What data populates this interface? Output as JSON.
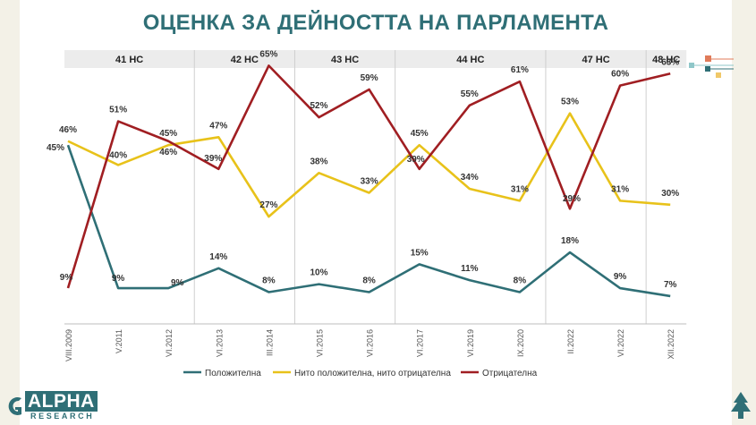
{
  "title": "ОЦЕНКА ЗА ДЕЙНОСТТА НА ПАРЛАМЕНТА",
  "logo": {
    "main": "ALPHA",
    "sub": "RESEARCH"
  },
  "colors": {
    "positive": "#2f6f76",
    "neutral": "#e8c21a",
    "negative": "#a01e22",
    "title": "#2f6f76"
  },
  "chart_data": {
    "type": "line",
    "title": "ОЦЕНКА ЗА ДЕЙНОСТТА НА ПАРЛАМЕНТА",
    "ylim": [
      0,
      70
    ],
    "grid": false,
    "legend": "bottom",
    "categories": [
      "VIII.2009",
      "V.2011",
      "VI.2012",
      "VI.2013",
      "III.2014",
      "VI.2015",
      "VI.2016",
      "VI.2017",
      "VI.2019",
      "IX.2020",
      "II.2022",
      "VI.2022",
      "XII.2022"
    ],
    "parliaments": [
      {
        "label": "41 НС",
        "start": 0,
        "end": 3
      },
      {
        "label": "42 НС",
        "start": 3,
        "end": 5
      },
      {
        "label": "43 НС",
        "start": 5,
        "end": 7
      },
      {
        "label": "44 НС",
        "start": 7,
        "end": 10
      },
      {
        "label": "47 НС",
        "start": 10,
        "end": 12
      },
      {
        "label": "48 НС",
        "start": 12,
        "end": 13
      }
    ],
    "series": [
      {
        "name": "Положителна",
        "key": "positive",
        "values": [
          45,
          9,
          9,
          14,
          8,
          10,
          8,
          15,
          11,
          8,
          18,
          9,
          7
        ],
        "labels": [
          "45%",
          "9%",
          "9%",
          "14%",
          "8%",
          "10%",
          "8%",
          "15%",
          "11%",
          "8%",
          "18%",
          "9%",
          "7%"
        ]
      },
      {
        "name": "Нито положителна, нито отрицателна",
        "key": "neutral",
        "values": [
          46,
          40,
          45,
          47,
          27,
          38,
          33,
          45,
          34,
          31,
          53,
          31,
          30
        ],
        "labels": [
          "46%",
          "40%",
          "45%",
          "47%",
          "27%",
          "38%",
          "33%",
          "45%",
          "34%",
          "31%",
          "53%",
          "31%",
          "30%"
        ]
      },
      {
        "name": "Отрицателна",
        "key": "negative",
        "values": [
          9,
          51,
          46,
          39,
          65,
          52,
          59,
          39,
          55,
          61,
          29,
          60,
          63
        ],
        "labels": [
          "9%",
          "51%",
          "46%",
          "39%",
          "65%",
          "52%",
          "59%",
          "39%",
          "55%",
          "61%",
          "29%",
          "60%",
          "63%"
        ]
      }
    ]
  }
}
